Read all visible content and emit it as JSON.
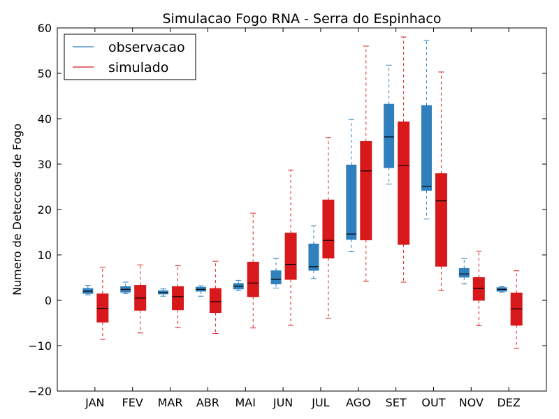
{
  "chart_data": {
    "type": "boxplot",
    "title": "Simulacao Fogo RNA - Serra do Espinhaco",
    "xlabel": "",
    "ylabel": "Numero de Deteccoes de Fogo",
    "ylim": [
      -20,
      60
    ],
    "yticks": [
      -20,
      -10,
      0,
      10,
      20,
      30,
      40,
      50,
      60
    ],
    "categories": [
      "JAN",
      "FEV",
      "MAR",
      "ABR",
      "MAI",
      "JUN",
      "JUL",
      "AGO",
      "SET",
      "OUT",
      "NOV",
      "DEZ"
    ],
    "grid": false,
    "legend_position": "top-left",
    "series": [
      {
        "name": "observacao",
        "color": "#3080bd",
        "boxes": [
          {
            "whislo": 1.2,
            "q1": 1.5,
            "med": 2.0,
            "q3": 2.6,
            "whishi": 3.3
          },
          {
            "whislo": 1.5,
            "q1": 1.8,
            "med": 2.4,
            "q3": 3.0,
            "whishi": 4.0
          },
          {
            "whislo": 0.9,
            "q1": 1.4,
            "med": 1.7,
            "q3": 2.1,
            "whishi": 2.5
          },
          {
            "whislo": 0.9,
            "q1": 2.0,
            "med": 2.4,
            "q3": 2.9,
            "whishi": 3.2
          },
          {
            "whislo": 2.2,
            "q1": 2.5,
            "med": 3.1,
            "q3": 3.7,
            "whishi": 4.4
          },
          {
            "whislo": 2.7,
            "q1": 3.6,
            "med": 4.6,
            "q3": 6.5,
            "whishi": 9.2
          },
          {
            "whislo": 4.8,
            "q1": 6.6,
            "med": 7.4,
            "q3": 12.4,
            "whishi": 16.4
          },
          {
            "whislo": 10.7,
            "q1": 13.4,
            "med": 14.6,
            "q3": 29.8,
            "whishi": 39.8
          },
          {
            "whislo": 25.6,
            "q1": 29.2,
            "med": 36.0,
            "q3": 43.2,
            "whishi": 51.8
          },
          {
            "whislo": 17.9,
            "q1": 24.2,
            "med": 25.1,
            "q3": 42.9,
            "whishi": 57.3
          },
          {
            "whislo": 3.6,
            "q1": 5.1,
            "med": 5.8,
            "q3": 7.0,
            "whishi": 9.2
          },
          {
            "whislo": 1.8,
            "q1": 2.0,
            "med": 2.4,
            "q3": 2.8,
            "whishi": 3.0
          }
        ]
      },
      {
        "name": "simulado",
        "color": "#d7191c",
        "boxes": [
          {
            "whislo": -8.6,
            "q1": -4.8,
            "med": -1.8,
            "q3": 1.4,
            "whishi": 7.3
          },
          {
            "whislo": -7.2,
            "q1": -2.2,
            "med": 0.5,
            "q3": 3.3,
            "whishi": 7.8
          },
          {
            "whislo": -6.0,
            "q1": -2.1,
            "med": 0.8,
            "q3": 3.0,
            "whishi": 7.6
          },
          {
            "whislo": -7.3,
            "q1": -2.7,
            "med": -0.3,
            "q3": 2.6,
            "whishi": 8.6
          },
          {
            "whislo": -6.1,
            "q1": 0.8,
            "med": 3.8,
            "q3": 8.4,
            "whishi": 19.2
          },
          {
            "whislo": -5.5,
            "q1": 4.6,
            "med": 7.9,
            "q3": 14.8,
            "whishi": 28.7
          },
          {
            "whislo": -4.0,
            "q1": 9.3,
            "med": 13.2,
            "q3": 22.1,
            "whishi": 35.9
          },
          {
            "whislo": 4.2,
            "q1": 13.3,
            "med": 28.5,
            "q3": 35.0,
            "whishi": 56.0
          },
          {
            "whislo": 4.0,
            "q1": 12.3,
            "med": 29.7,
            "q3": 39.3,
            "whishi": 58.0
          },
          {
            "whislo": 2.2,
            "q1": 7.5,
            "med": 21.9,
            "q3": 27.9,
            "whishi": 50.3
          },
          {
            "whislo": -5.6,
            "q1": 0.0,
            "med": 2.6,
            "q3": 5.0,
            "whishi": 10.8
          },
          {
            "whislo": -10.6,
            "q1": -5.5,
            "med": -1.9,
            "q3": 1.6,
            "whishi": 6.5
          }
        ]
      }
    ]
  }
}
